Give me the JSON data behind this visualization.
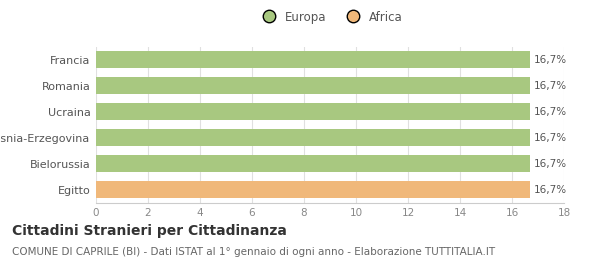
{
  "categories": [
    "Francia",
    "Romania",
    "Ucraina",
    "Bosnia-Erzegovina",
    "Bielorussia",
    "Egitto"
  ],
  "values": [
    16.7,
    16.7,
    16.7,
    16.7,
    16.7,
    16.7
  ],
  "bar_colors": [
    "#a8c880",
    "#a8c880",
    "#a8c880",
    "#a8c880",
    "#a8c880",
    "#f0b87a"
  ],
  "legend_labels": [
    "Europa",
    "Africa"
  ],
  "legend_colors": [
    "#a8c880",
    "#f0b87a"
  ],
  "value_labels": [
    "16,7%",
    "16,7%",
    "16,7%",
    "16,7%",
    "16,7%",
    "16,7%"
  ],
  "xlim": [
    0,
    18
  ],
  "xticks": [
    0,
    2,
    4,
    6,
    8,
    10,
    12,
    14,
    16,
    18
  ],
  "title": "Cittadini Stranieri per Cittadinanza",
  "subtitle": "COMUNE DI CAPRILE (BI) - Dati ISTAT al 1° gennaio di ogni anno - Elaborazione TUTTITALIA.IT",
  "title_fontsize": 10,
  "subtitle_fontsize": 7.5,
  "background_color": "#ffffff",
  "bar_height": 0.65,
  "grid_color": "#e0e0e0"
}
